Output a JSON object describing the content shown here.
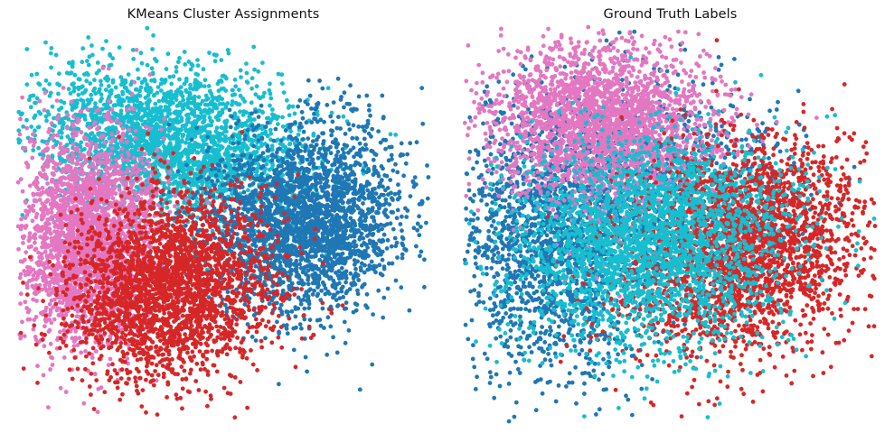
{
  "chart_data": [
    {
      "type": "scatter",
      "title": "KMeans Cluster Assignments",
      "axes": "off",
      "grid": false,
      "xlim": [
        -2.4,
        2.6
      ],
      "ylim": [
        -2.4,
        2.4
      ],
      "point_count_per_series": 2600,
      "series": [
        {
          "color": "#17becf",
          "clusters": [
            {
              "cx": -0.55,
              "cy": 1.0,
              "sx": 0.85,
              "sy": 0.45,
              "rot": -0.2,
              "weight": 1.0
            }
          ]
        },
        {
          "color": "#1f77b4",
          "clusters": [
            {
              "cx": 1.1,
              "cy": 0.05,
              "sx": 0.62,
              "sy": 0.55,
              "rot": 0.3,
              "weight": 1.0
            }
          ]
        },
        {
          "color": "#e377c2",
          "clusters": [
            {
              "cx": -1.55,
              "cy": -0.15,
              "sx": 0.42,
              "sy": 0.62,
              "rot": 0.0,
              "weight": 1.0
            }
          ]
        },
        {
          "color": "#d62728",
          "clusters": [
            {
              "cx": -0.55,
              "cy": -0.75,
              "sx": 0.65,
              "sy": 0.55,
              "rot": 0.35,
              "weight": 1.0
            }
          ]
        }
      ]
    },
    {
      "type": "scatter",
      "title": "Ground Truth Labels",
      "axes": "off",
      "grid": false,
      "xlim": [
        -2.4,
        2.6
      ],
      "ylim": [
        -2.4,
        2.4
      ],
      "point_count_per_series": 2600,
      "series": [
        {
          "color": "#1f77b4",
          "clusters": [
            {
              "cx": -1.3,
              "cy": -0.2,
              "sx": 0.65,
              "sy": 0.85,
              "rot": 0.0,
              "weight": 0.7
            },
            {
              "cx": -0.2,
              "cy": 0.6,
              "sx": 0.9,
              "sy": 0.6,
              "rot": 0.0,
              "weight": 0.3
            }
          ]
        },
        {
          "color": "#e377c2",
          "clusters": [
            {
              "cx": -0.7,
              "cy": 1.2,
              "sx": 0.7,
              "sy": 0.5,
              "rot": -0.2,
              "weight": 1.0
            }
          ]
        },
        {
          "color": "#d62728",
          "clusters": [
            {
              "cx": 1.0,
              "cy": -0.25,
              "sx": 0.75,
              "sy": 0.6,
              "rot": 0.4,
              "weight": 1.0
            }
          ]
        },
        {
          "color": "#17becf",
          "clusters": [
            {
              "cx": -0.1,
              "cy": -0.2,
              "sx": 0.85,
              "sy": 0.65,
              "rot": 0.15,
              "weight": 1.0
            }
          ]
        }
      ]
    }
  ]
}
